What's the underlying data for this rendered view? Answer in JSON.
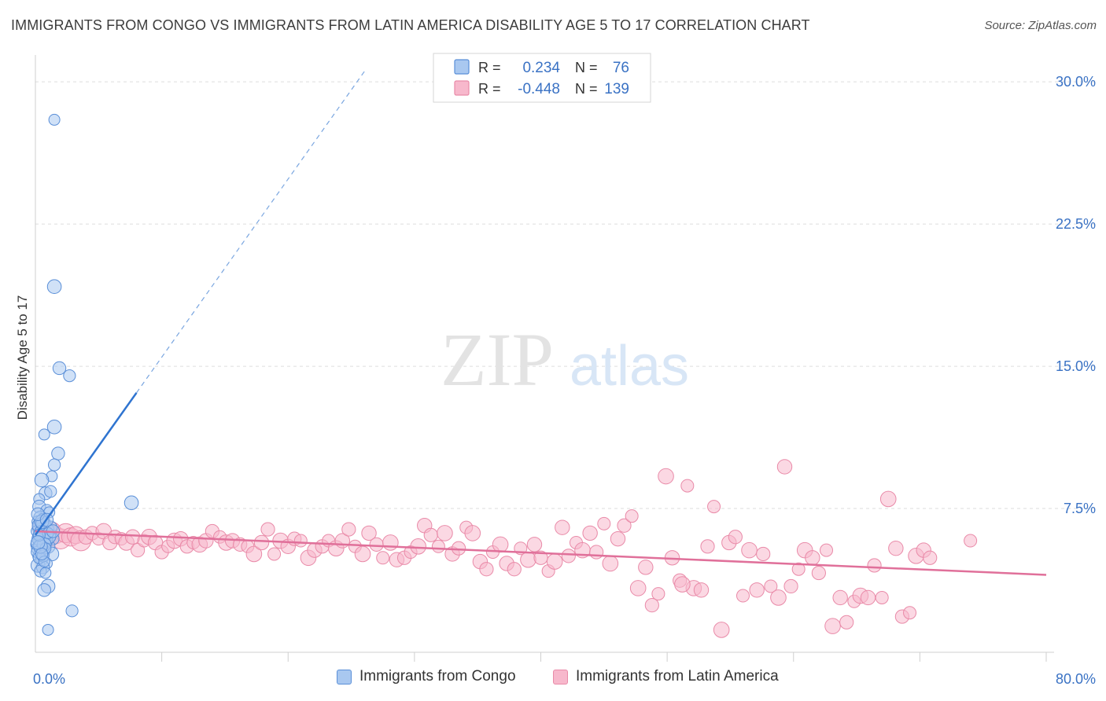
{
  "title": "IMMIGRANTS FROM CONGO VS IMMIGRANTS FROM LATIN AMERICA DISABILITY AGE 5 TO 17 CORRELATION CHART",
  "source": "Source: ZipAtlas.com",
  "watermark": {
    "zip": "ZIP",
    "atlas": "atlas"
  },
  "colors": {
    "congo_fill": "#a9c8f0",
    "congo_stroke": "#5a8fd8",
    "congo_line": "#2f74d0",
    "latin_fill": "#f7b8cc",
    "latin_stroke": "#e98aa8",
    "latin_line": "#e0709a",
    "axis_label": "#3a72c4",
    "grid": "#dddddd"
  },
  "legend_top": {
    "rows": [
      {
        "r_label": "R =",
        "r_value": "0.234",
        "n_label": "N =",
        "n_value": "76"
      },
      {
        "r_label": "R =",
        "r_value": "-0.448",
        "n_label": "N =",
        "n_value": "139"
      }
    ]
  },
  "chart_data": {
    "type": "scatter",
    "title": "IMMIGRANTS FROM CONGO VS IMMIGRANTS FROM LATIN AMERICA DISABILITY AGE 5 TO 17 CORRELATION CHART",
    "xlabel": "",
    "ylabel": "Disability Age 5 to 17",
    "xlim": [
      0,
      80
    ],
    "ylim": [
      0,
      31
    ],
    "x_tick_labels": [
      "0.0%",
      "80.0%"
    ],
    "y_ticks": [
      7.5,
      15.0,
      22.5,
      30.0
    ],
    "y_tick_labels": [
      "7.5%",
      "15.0%",
      "22.5%",
      "30.0%"
    ],
    "grid": true,
    "legend": [
      "Immigrants from Congo",
      "Immigrants from Latin America"
    ],
    "series": [
      {
        "name": "Immigrants from Congo",
        "r": 0.234,
        "n": 76,
        "trend": {
          "x0": 0.0,
          "y0": 6.1,
          "x1": 8.0,
          "y1": 13.6,
          "dash_to_x": 26.2,
          "dash_to_y": 30.7
        },
        "points": [
          [
            1.5,
            28.0
          ],
          [
            1.5,
            19.2
          ],
          [
            1.9,
            14.9
          ],
          [
            2.7,
            14.5
          ],
          [
            0.7,
            11.4
          ],
          [
            1.5,
            11.8
          ],
          [
            1.8,
            10.4
          ],
          [
            1.5,
            9.8
          ],
          [
            1.3,
            9.2
          ],
          [
            0.5,
            9.0
          ],
          [
            0.8,
            8.3
          ],
          [
            1.2,
            8.4
          ],
          [
            0.3,
            8.0
          ],
          [
            7.6,
            7.8
          ],
          [
            0.3,
            7.6
          ],
          [
            0.9,
            7.4
          ],
          [
            1.1,
            7.3
          ],
          [
            0.4,
            7.0
          ],
          [
            0.6,
            6.9
          ],
          [
            0.2,
            6.8
          ],
          [
            0.8,
            6.7
          ],
          [
            0.3,
            6.5
          ],
          [
            0.5,
            6.4
          ],
          [
            1.0,
            6.4
          ],
          [
            0.1,
            6.3
          ],
          [
            0.6,
            6.2
          ],
          [
            0.9,
            6.1
          ],
          [
            1.2,
            6.1
          ],
          [
            0.2,
            6.0
          ],
          [
            0.4,
            6.0
          ],
          [
            0.7,
            5.9
          ],
          [
            1.4,
            5.9
          ],
          [
            0.3,
            5.8
          ],
          [
            0.5,
            5.7
          ],
          [
            0.8,
            5.7
          ],
          [
            0.1,
            5.6
          ],
          [
            0.6,
            5.5
          ],
          [
            1.0,
            5.5
          ],
          [
            0.2,
            5.4
          ],
          [
            0.4,
            5.3
          ],
          [
            0.7,
            5.2
          ],
          [
            1.3,
            5.1
          ],
          [
            0.3,
            5.0
          ],
          [
            0.5,
            4.8
          ],
          [
            0.9,
            4.6
          ],
          [
            0.2,
            4.5
          ],
          [
            0.6,
            4.4
          ],
          [
            0.4,
            4.2
          ],
          [
            0.8,
            4.1
          ],
          [
            1.0,
            3.4
          ],
          [
            0.7,
            3.2
          ],
          [
            2.9,
            2.1
          ],
          [
            1.0,
            1.1
          ],
          [
            0.3,
            6.6
          ],
          [
            0.5,
            6.1
          ],
          [
            0.9,
            5.8
          ],
          [
            0.1,
            5.2
          ],
          [
            0.6,
            6.7
          ],
          [
            1.1,
            6.0
          ],
          [
            0.2,
            5.9
          ],
          [
            0.4,
            6.3
          ],
          [
            0.7,
            5.6
          ],
          [
            1.2,
            6.5
          ],
          [
            0.3,
            4.9
          ],
          [
            0.8,
            5.4
          ],
          [
            0.5,
            6.8
          ],
          [
            0.2,
            7.2
          ],
          [
            0.6,
            5.0
          ],
          [
            1.0,
            6.2
          ],
          [
            0.4,
            5.5
          ],
          [
            0.9,
            6.9
          ],
          [
            0.3,
            6.1
          ],
          [
            0.7,
            4.7
          ],
          [
            0.2,
            5.7
          ],
          [
            1.4,
            6.3
          ],
          [
            0.5,
            5.1
          ]
        ]
      },
      {
        "name": "Immigrants from Latin America",
        "r": -0.448,
        "n": 139,
        "trend": {
          "x0": 0.0,
          "y0": 6.3,
          "x1": 80.0,
          "y1": 4.0
        },
        "points": [
          [
            0.5,
            6.4
          ],
          [
            0.8,
            6.2
          ],
          [
            1.0,
            6.0
          ],
          [
            1.3,
            6.3
          ],
          [
            1.6,
            6.1
          ],
          [
            2.0,
            5.9
          ],
          [
            2.4,
            6.2
          ],
          [
            2.8,
            6.0
          ],
          [
            3.2,
            6.1
          ],
          [
            3.6,
            5.8
          ],
          [
            4.0,
            6.0
          ],
          [
            4.5,
            6.2
          ],
          [
            5.0,
            5.9
          ],
          [
            5.4,
            6.3
          ],
          [
            5.9,
            5.7
          ],
          [
            6.3,
            6.0
          ],
          [
            6.8,
            5.9
          ],
          [
            7.2,
            5.7
          ],
          [
            7.7,
            6.0
          ],
          [
            8.1,
            5.3
          ],
          [
            8.6,
            5.8
          ],
          [
            9.0,
            6.0
          ],
          [
            9.5,
            5.7
          ],
          [
            10.0,
            5.2
          ],
          [
            10.5,
            5.5
          ],
          [
            11.0,
            5.8
          ],
          [
            11.5,
            5.9
          ],
          [
            12.0,
            5.5
          ],
          [
            12.5,
            5.7
          ],
          [
            13.0,
            5.6
          ],
          [
            13.5,
            5.8
          ],
          [
            14.0,
            6.3
          ],
          [
            14.6,
            6.0
          ],
          [
            15.1,
            5.7
          ],
          [
            15.6,
            5.8
          ],
          [
            16.2,
            5.6
          ],
          [
            16.8,
            5.5
          ],
          [
            17.3,
            5.1
          ],
          [
            17.9,
            5.7
          ],
          [
            18.4,
            6.4
          ],
          [
            18.9,
            5.1
          ],
          [
            19.4,
            5.8
          ],
          [
            20.0,
            5.5
          ],
          [
            20.5,
            5.9
          ],
          [
            21.0,
            5.8
          ],
          [
            21.6,
            4.9
          ],
          [
            22.1,
            5.3
          ],
          [
            22.7,
            5.5
          ],
          [
            23.2,
            5.8
          ],
          [
            23.8,
            5.4
          ],
          [
            24.3,
            5.8
          ],
          [
            24.8,
            6.4
          ],
          [
            25.3,
            5.5
          ],
          [
            25.9,
            5.1
          ],
          [
            26.4,
            6.2
          ],
          [
            27.0,
            5.6
          ],
          [
            27.5,
            4.9
          ],
          [
            28.1,
            5.7
          ],
          [
            28.6,
            4.8
          ],
          [
            29.2,
            4.9
          ],
          [
            29.7,
            5.2
          ],
          [
            30.3,
            5.5
          ],
          [
            30.8,
            6.6
          ],
          [
            31.3,
            6.1
          ],
          [
            31.9,
            5.5
          ],
          [
            32.4,
            6.2
          ],
          [
            33.0,
            5.1
          ],
          [
            33.5,
            5.4
          ],
          [
            34.1,
            6.5
          ],
          [
            34.6,
            6.2
          ],
          [
            35.2,
            4.7
          ],
          [
            35.7,
            4.3
          ],
          [
            36.2,
            5.2
          ],
          [
            36.8,
            5.6
          ],
          [
            37.3,
            4.6
          ],
          [
            37.9,
            4.3
          ],
          [
            38.4,
            5.4
          ],
          [
            39.0,
            4.8
          ],
          [
            39.5,
            5.6
          ],
          [
            40.0,
            4.9
          ],
          [
            40.6,
            4.2
          ],
          [
            41.1,
            4.7
          ],
          [
            41.7,
            6.5
          ],
          [
            42.2,
            5.0
          ],
          [
            42.8,
            5.7
          ],
          [
            43.3,
            5.3
          ],
          [
            43.9,
            6.2
          ],
          [
            44.4,
            5.2
          ],
          [
            45.0,
            6.7
          ],
          [
            45.5,
            4.6
          ],
          [
            46.1,
            5.9
          ],
          [
            46.6,
            6.6
          ],
          [
            47.2,
            7.1
          ],
          [
            47.7,
            3.3
          ],
          [
            48.3,
            4.4
          ],
          [
            48.8,
            2.4
          ],
          [
            49.3,
            3.0
          ],
          [
            49.9,
            9.2
          ],
          [
            50.4,
            4.9
          ],
          [
            51.0,
            3.7
          ],
          [
            51.6,
            8.7
          ],
          [
            52.1,
            3.3
          ],
          [
            52.7,
            3.2
          ],
          [
            53.2,
            5.5
          ],
          [
            53.7,
            7.6
          ],
          [
            54.3,
            1.1
          ],
          [
            54.9,
            5.7
          ],
          [
            55.4,
            6.0
          ],
          [
            56.0,
            2.9
          ],
          [
            56.5,
            5.3
          ],
          [
            57.1,
            3.2
          ],
          [
            57.6,
            5.1
          ],
          [
            58.2,
            3.4
          ],
          [
            58.8,
            2.8
          ],
          [
            59.3,
            9.7
          ],
          [
            59.8,
            3.4
          ],
          [
            60.4,
            4.3
          ],
          [
            60.9,
            5.3
          ],
          [
            61.5,
            4.9
          ],
          [
            62.0,
            4.1
          ],
          [
            62.6,
            5.3
          ],
          [
            63.1,
            1.3
          ],
          [
            63.7,
            2.8
          ],
          [
            64.2,
            1.5
          ],
          [
            64.8,
            2.6
          ],
          [
            65.3,
            2.9
          ],
          [
            65.9,
            2.8
          ],
          [
            66.4,
            4.5
          ],
          [
            67.0,
            2.8
          ],
          [
            67.5,
            8.0
          ],
          [
            68.1,
            5.4
          ],
          [
            68.6,
            1.8
          ],
          [
            69.2,
            2.0
          ],
          [
            69.7,
            5.0
          ],
          [
            70.3,
            5.3
          ],
          [
            70.8,
            4.9
          ],
          [
            74.0,
            5.8
          ],
          [
            51.2,
            3.5
          ]
        ]
      }
    ]
  },
  "legend_bottom": {
    "congo": "Immigrants from Congo",
    "latin": "Immigrants from Latin America"
  }
}
